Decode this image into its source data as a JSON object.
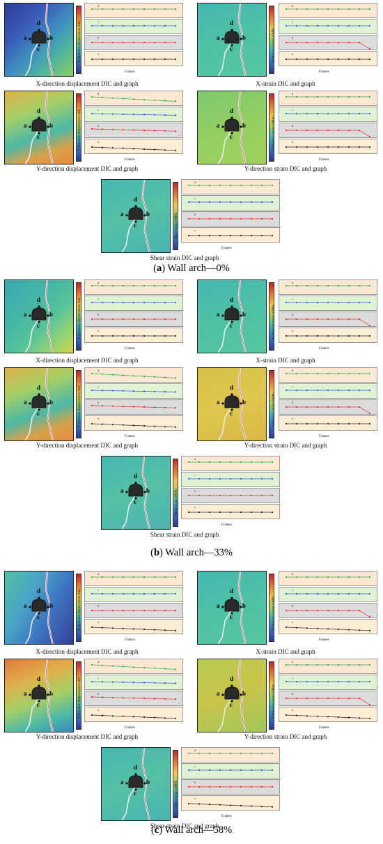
{
  "axis_label_frames": "Frames",
  "point_labels": {
    "a": "a",
    "b": "b",
    "c": "c",
    "d": "d"
  },
  "series_letters": [
    "d",
    "c",
    "b",
    "a"
  ],
  "panel_colors": {
    "d": "#fde8d4",
    "c": "#dff3d4",
    "b": "#dcdcdc",
    "a": "#fbeed4"
  },
  "series_colors": {
    "d": "#2eaa4a",
    "c": "#2a55d6",
    "b": "#e02a2a",
    "a": "#222222"
  },
  "sections": [
    {
      "subtitle_label": "(a)",
      "subtitle_text": " Wall arch—0%",
      "cells": [
        {
          "caption": "X-direction displacement DIC and graph",
          "ylabel": "X-direction displacement mm",
          "theme": "xdisp"
        },
        {
          "caption": "X-strain DIC and graph",
          "ylabel": "X-direction strain σ/MPa",
          "theme": "xstrain"
        },
        {
          "caption": "Y-direction displacement DIC and graph",
          "ylabel": "Y-direction displacement mm",
          "theme": "ydisp"
        },
        {
          "caption": "Y-direction strain DIC and graph",
          "ylabel": "Y-direction strain σ/MPa",
          "theme": "ystrain"
        },
        {
          "caption": "Shear strain DIC and graph",
          "ylabel": "Shear strain σ/MPa",
          "theme": "shear"
        }
      ]
    },
    {
      "subtitle_label": "(b)",
      "subtitle_text": " Wall arch—33%",
      "cells": [
        {
          "caption": "X-direction displacement DIC and graph",
          "ylabel": "X-direction displacement mm",
          "theme": "xdisp2"
        },
        {
          "caption": "X-strain DIC and graph",
          "ylabel": "X-direction strain σ/MPa",
          "theme": "xstrain"
        },
        {
          "caption": "Y-direction displacement DIC and graph",
          "ylabel": "Y-direction displacement mm",
          "theme": "ydisp"
        },
        {
          "caption": "Y-direction strain DIC and graph",
          "ylabel": "Y-direction strain σ/MPa",
          "theme": "ystrain2"
        },
        {
          "caption": "Shear strain DIC and graph",
          "ylabel": "Shear strain σ/MPa",
          "theme": "shear"
        }
      ]
    },
    {
      "subtitle_label": "(c)",
      "subtitle_text": " Wall arch—58%",
      "cells": [
        {
          "caption": "X-direction displacement DIC and graph",
          "ylabel": "X-direction displacement mm",
          "theme": "xdisp3"
        },
        {
          "caption": "X-strain DIC and graph",
          "ylabel": "X-direction strain σ/MPa",
          "theme": "xstrain"
        },
        {
          "caption": "Y-direction displacement DIC and graph",
          "ylabel": "Y-direction displacement mm",
          "theme": "ydisp3"
        },
        {
          "caption": "Y-direction strain DIC and graph",
          "ylabel": "Y-direction strain σ/MPa",
          "theme": "ystrain3"
        },
        {
          "caption": "Shear strain DIC and graph",
          "ylabel": "Shear strain σ/MPa",
          "theme": "shear"
        }
      ]
    }
  ]
}
